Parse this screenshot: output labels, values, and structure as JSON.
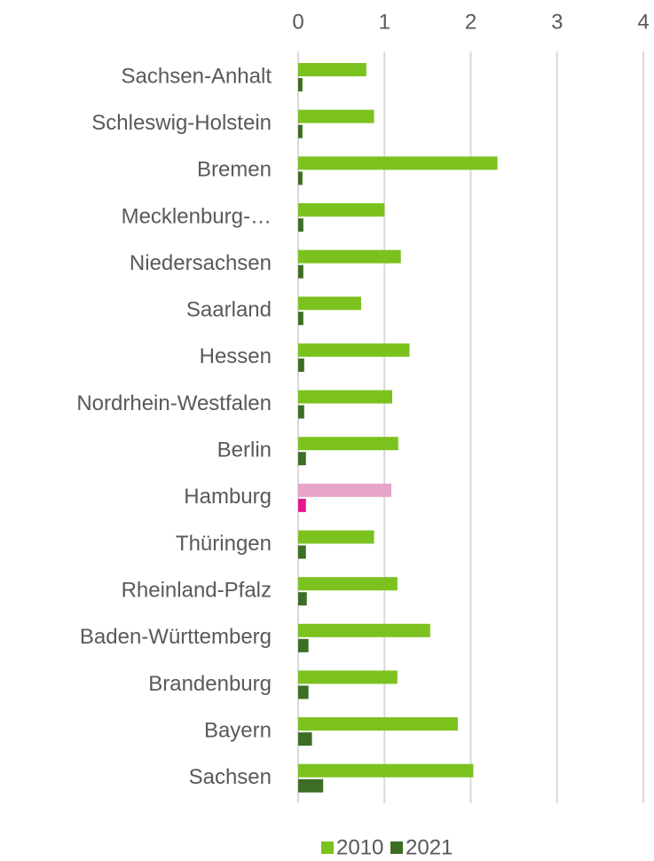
{
  "chart_data": {
    "type": "barh",
    "categories": [
      "Sachsen-Anhalt",
      "Schleswig-Holstein",
      "Bremen",
      "Mecklenburg-…",
      "Niedersachsen",
      "Saarland",
      "Hessen",
      "Nordrhein-Westfalen",
      "Berlin",
      "Hamburg",
      "Thüringen",
      "Rheinland-Pfalz",
      "Baden-Württemberg",
      "Brandenburg",
      "Bayern",
      "Sachsen"
    ],
    "series": [
      {
        "name": "2010",
        "color": "#7cc21f",
        "colors": [
          "#7cc21f",
          "#7cc21f",
          "#7cc21f",
          "#7cc21f",
          "#7cc21f",
          "#7cc21f",
          "#7cc21f",
          "#7cc21f",
          "#7cc21f",
          "#e7a5c9",
          "#7cc21f",
          "#7cc21f",
          "#7cc21f",
          "#7cc21f",
          "#7cc21f",
          "#7cc21f"
        ],
        "values": [
          0.79,
          0.88,
          2.31,
          1.0,
          1.19,
          0.73,
          1.29,
          1.09,
          1.16,
          1.08,
          0.88,
          1.15,
          1.53,
          1.15,
          1.85,
          2.03
        ]
      },
      {
        "name": "2021",
        "color": "#3c6e25",
        "colors": [
          "#3c6e25",
          "#3c6e25",
          "#3c6e25",
          "#3c6e25",
          "#3c6e25",
          "#3c6e25",
          "#3c6e25",
          "#3c6e25",
          "#3c6e25",
          "#e2178c",
          "#3c6e25",
          "#3c6e25",
          "#3c6e25",
          "#3c6e25",
          "#3c6e25",
          "#3c6e25"
        ],
        "values": [
          0.05,
          0.05,
          0.05,
          0.06,
          0.06,
          0.06,
          0.07,
          0.07,
          0.09,
          0.09,
          0.09,
          0.1,
          0.12,
          0.12,
          0.16,
          0.29
        ]
      }
    ],
    "xlim": [
      0,
      4
    ],
    "xticks": [
      0,
      1,
      2,
      3,
      4
    ],
    "grid": true,
    "legend": "bottom"
  }
}
